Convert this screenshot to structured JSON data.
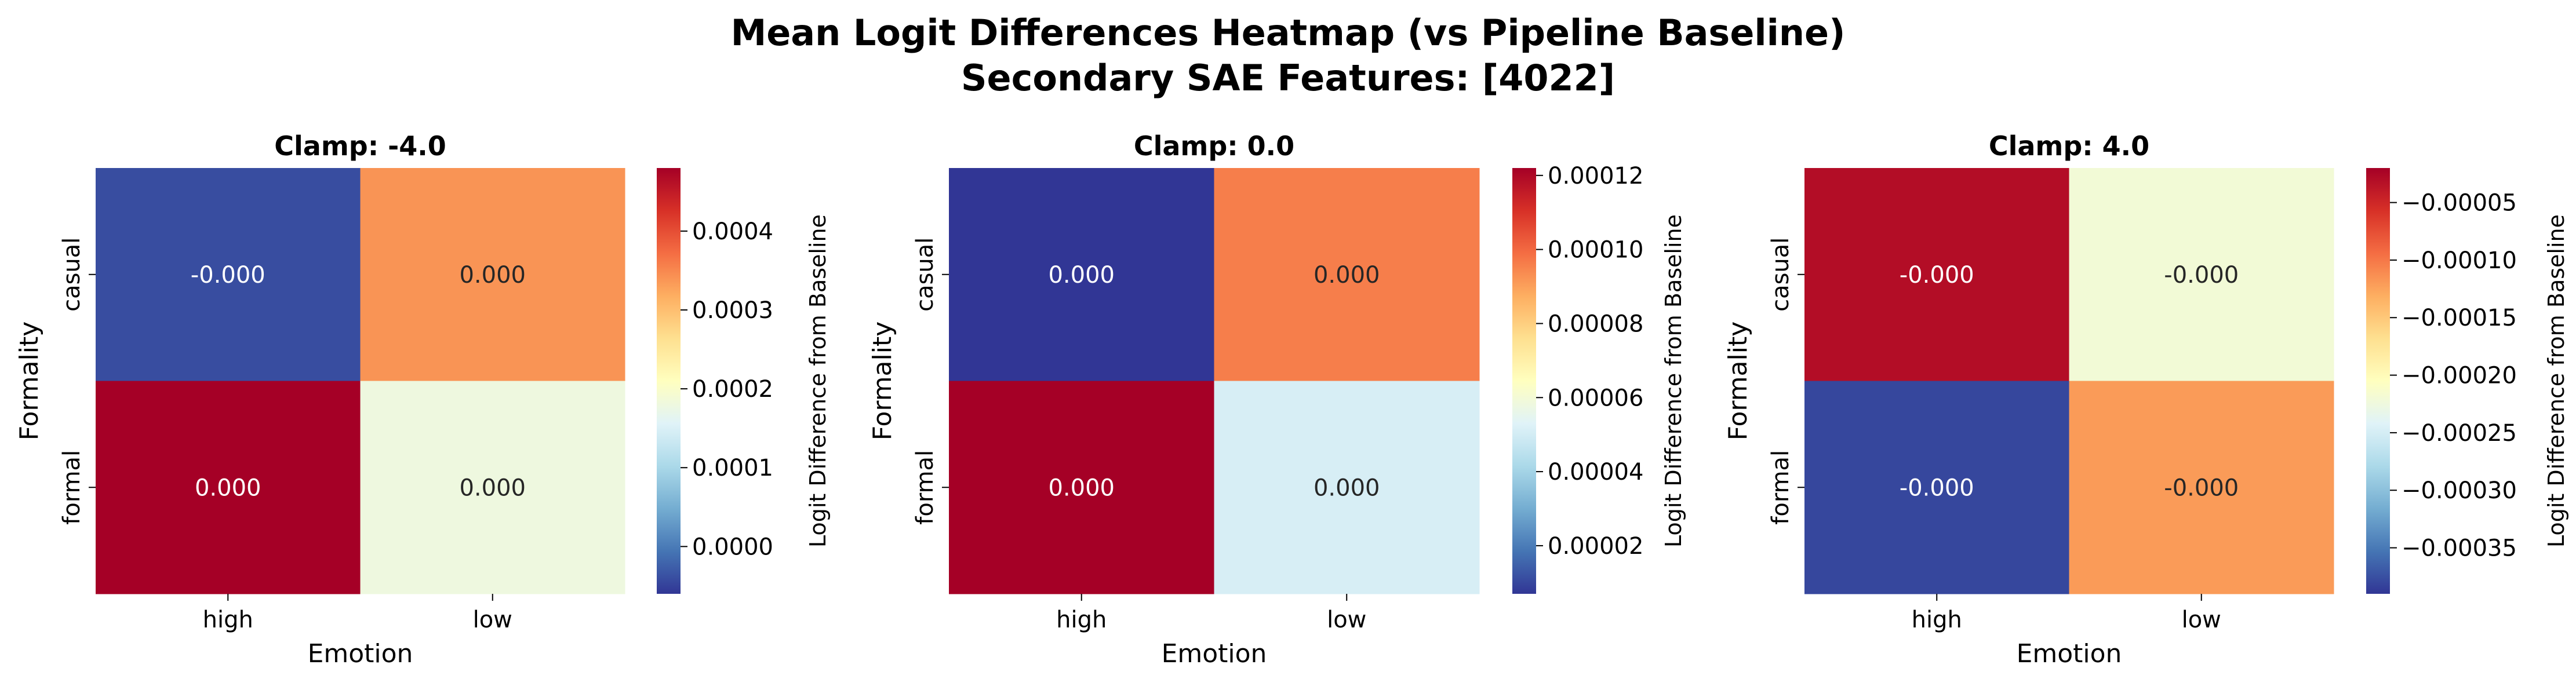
{
  "figure": {
    "title_line1": "Mean Logit Differences Heatmap (vs Pipeline Baseline)",
    "title_line2": "Secondary SAE Features: [4022]"
  },
  "chart_data": [
    {
      "type": "heatmap",
      "title": "Clamp: -4.0",
      "xlabel": "Emotion",
      "ylabel": "Formality",
      "x_categories": [
        "high",
        "low"
      ],
      "y_categories": [
        "casual",
        "formal"
      ],
      "values": [
        [
          -4e-05,
          0.00034
        ],
        [
          0.00048,
          0.00018
        ]
      ],
      "annotations": [
        [
          "-0.000",
          "0.000"
        ],
        [
          "0.000",
          "0.000"
        ]
      ],
      "colormap": "RdYlBu_r",
      "colorbar": {
        "label": "Logit Difference from Baseline",
        "range": [
          -6e-05,
          0.00048
        ],
        "ticks": [
          0.0,
          0.0001,
          0.0002,
          0.0003,
          0.0004
        ],
        "tick_labels": [
          "0.0000",
          "0.0001",
          "0.0002",
          "0.0003",
          "0.0004"
        ]
      }
    },
    {
      "type": "heatmap",
      "title": "Clamp: 0.0",
      "xlabel": "Emotion",
      "ylabel": "Formality",
      "x_categories": [
        "high",
        "low"
      ],
      "y_categories": [
        "casual",
        "formal"
      ],
      "values": [
        [
          7e-06,
          9.6e-05
        ],
        [
          0.000122,
          5.1e-05
        ]
      ],
      "annotations": [
        [
          "0.000",
          "0.000"
        ],
        [
          "0.000",
          "0.000"
        ]
      ],
      "colormap": "RdYlBu_r",
      "colorbar": {
        "label": "Logit Difference from Baseline",
        "range": [
          7e-06,
          0.000122
        ],
        "ticks": [
          2e-05,
          4e-05,
          6e-05,
          8e-05,
          0.0001,
          0.00012
        ],
        "tick_labels": [
          "0.00002",
          "0.00004",
          "0.00006",
          "0.00008",
          "0.00010",
          "0.00012"
        ]
      }
    },
    {
      "type": "heatmap",
      "title": "Clamp: 4.0",
      "xlabel": "Emotion",
      "ylabel": "Formality",
      "x_categories": [
        "high",
        "low"
      ],
      "y_categories": [
        "casual",
        "formal"
      ],
      "values": [
        [
          -3e-05,
          -0.00022
        ],
        [
          -0.00038,
          -0.00012
        ]
      ],
      "annotations": [
        [
          "-0.000",
          "-0.000"
        ],
        [
          "-0.000",
          "-0.000"
        ]
      ],
      "colormap": "RdYlBu_r",
      "colorbar": {
        "label": "Logit Difference from Baseline",
        "range": [
          -0.00039,
          -2e-05
        ],
        "ticks": [
          -5e-05,
          -0.0001,
          -0.00015,
          -0.0002,
          -0.00025,
          -0.0003,
          -0.00035
        ],
        "tick_labels": [
          "−0.00005",
          "−0.00010",
          "−0.00015",
          "−0.00020",
          "−0.00025",
          "−0.00030",
          "−0.00035"
        ]
      }
    }
  ]
}
